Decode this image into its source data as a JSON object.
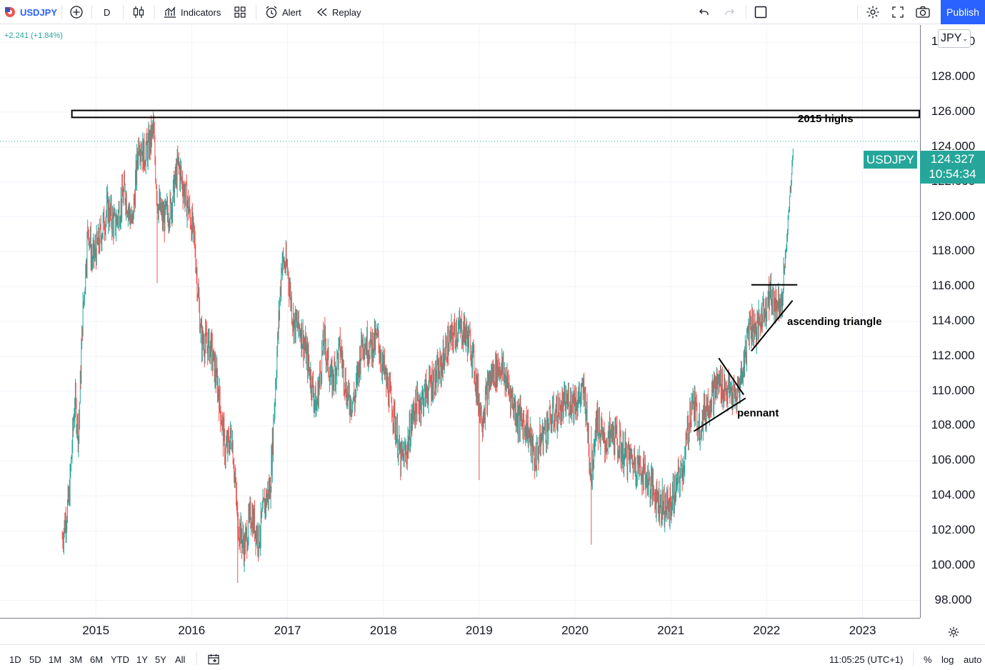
{
  "toolbar": {
    "symbol": "USDJPY",
    "interval": "D",
    "indicators_label": "Indicators",
    "alert_label": "Alert",
    "replay_label": "Replay",
    "publish_label": "Publish"
  },
  "change_text": "+2.241 (+1.84%)",
  "price_axis": {
    "currency": "JPY",
    "last_price": "124.327",
    "countdown": "10:54:34",
    "symbol_tag": "USDJPY"
  },
  "bottom_bar": {
    "ranges": [
      "1D",
      "5D",
      "1M",
      "3M",
      "6M",
      "YTD",
      "1Y",
      "5Y",
      "All"
    ],
    "clock": "11:05:25 (UTC+1)",
    "percent_label": "%",
    "log_label": "log",
    "auto_label": "auto"
  },
  "annotations": {
    "highs_label": "2015 highs",
    "triangle_label": "ascending triangle",
    "pennant_label": "pennant"
  },
  "colors": {
    "up": "#26a69a",
    "down": "#ef5350",
    "accent": "#2962ff"
  },
  "chart_data": {
    "type": "candlestick",
    "symbol": "USDJPY",
    "interval": "D",
    "ylim": [
      97,
      131
    ],
    "xlim": [
      2014.0,
      2023.6
    ],
    "y_ticks": [
      "98.000",
      "100.000",
      "102.000",
      "104.000",
      "106.000",
      "108.000",
      "110.000",
      "112.000",
      "114.000",
      "116.000",
      "118.000",
      "120.000",
      "122.000",
      "124.000",
      "126.000",
      "128.000",
      "130.000"
    ],
    "x_ticks": [
      "2015",
      "2016",
      "2017",
      "2018",
      "2019",
      "2020",
      "2021",
      "2022",
      "2023"
    ],
    "last_price": 124.327,
    "change": 2.241,
    "change_pct": 1.84,
    "price_path": [
      [
        2014.65,
        101.6
      ],
      [
        2014.72,
        103.8
      ],
      [
        2014.78,
        109.5
      ],
      [
        2014.82,
        107.5
      ],
      [
        2014.86,
        114.0
      ],
      [
        2014.92,
        119.5
      ],
      [
        2014.96,
        117.5
      ],
      [
        2015.03,
        118.5
      ],
      [
        2015.12,
        120.5
      ],
      [
        2015.2,
        119.5
      ],
      [
        2015.3,
        121.5
      ],
      [
        2015.38,
        119.5
      ],
      [
        2015.45,
        124.5
      ],
      [
        2015.5,
        123.5
      ],
      [
        2015.55,
        124.0
      ],
      [
        2015.6,
        125.0
      ],
      [
        2015.64,
        121.0
      ],
      [
        2015.7,
        119.8
      ],
      [
        2015.78,
        120.5
      ],
      [
        2015.86,
        123.0
      ],
      [
        2015.92,
        121.5
      ],
      [
        2015.98,
        120.2
      ],
      [
        2016.03,
        118.5
      ],
      [
        2016.1,
        113.0
      ],
      [
        2016.2,
        112.5
      ],
      [
        2016.28,
        110.0
      ],
      [
        2016.35,
        106.5
      ],
      [
        2016.42,
        107.5
      ],
      [
        2016.48,
        102.5
      ],
      [
        2016.55,
        101.0
      ],
      [
        2016.62,
        103.0
      ],
      [
        2016.7,
        101.5
      ],
      [
        2016.76,
        103.5
      ],
      [
        2016.82,
        104.5
      ],
      [
        2016.88,
        111.0
      ],
      [
        2016.94,
        117.5
      ],
      [
        2017.0,
        117.0
      ],
      [
        2017.06,
        114.0
      ],
      [
        2017.14,
        113.5
      ],
      [
        2017.22,
        111.5
      ],
      [
        2017.3,
        109.0
      ],
      [
        2017.38,
        113.0
      ],
      [
        2017.46,
        110.5
      ],
      [
        2017.55,
        112.5
      ],
      [
        2017.63,
        109.5
      ],
      [
        2017.7,
        109.5
      ],
      [
        2017.78,
        113.0
      ],
      [
        2017.86,
        112.5
      ],
      [
        2017.94,
        113.0
      ],
      [
        2018.03,
        110.5
      ],
      [
        2018.1,
        109.0
      ],
      [
        2018.18,
        106.0
      ],
      [
        2018.24,
        106.5
      ],
      [
        2018.32,
        109.0
      ],
      [
        2018.4,
        109.5
      ],
      [
        2018.5,
        110.5
      ],
      [
        2018.58,
        111.0
      ],
      [
        2018.66,
        112.5
      ],
      [
        2018.76,
        113.5
      ],
      [
        2018.84,
        113.5
      ],
      [
        2018.92,
        112.5
      ],
      [
        2018.98,
        110.0
      ],
      [
        2019.03,
        108.5
      ],
      [
        2019.12,
        110.8
      ],
      [
        2019.22,
        111.5
      ],
      [
        2019.32,
        110.0
      ],
      [
        2019.4,
        108.5
      ],
      [
        2019.5,
        108.0
      ],
      [
        2019.58,
        106.0
      ],
      [
        2019.66,
        107.5
      ],
      [
        2019.76,
        108.5
      ],
      [
        2019.86,
        109.0
      ],
      [
        2019.94,
        109.5
      ],
      [
        2020.03,
        109.5
      ],
      [
        2020.1,
        110.0
      ],
      [
        2020.17,
        105.0
      ],
      [
        2020.22,
        108.5
      ],
      [
        2020.3,
        107.0
      ],
      [
        2020.4,
        107.5
      ],
      [
        2020.5,
        106.5
      ],
      [
        2020.6,
        106.0
      ],
      [
        2020.7,
        105.5
      ],
      [
        2020.8,
        104.5
      ],
      [
        2020.9,
        103.5
      ],
      [
        2020.98,
        103.3
      ],
      [
        2021.06,
        104.5
      ],
      [
        2021.14,
        106.0
      ],
      [
        2021.22,
        109.5
      ],
      [
        2021.3,
        108.0
      ],
      [
        2021.4,
        109.5
      ],
      [
        2021.5,
        110.5
      ],
      [
        2021.6,
        110.0
      ],
      [
        2021.68,
        109.5
      ],
      [
        2021.76,
        111.5
      ],
      [
        2021.82,
        114.0
      ],
      [
        2021.9,
        113.5
      ],
      [
        2021.96,
        114.5
      ],
      [
        2022.03,
        115.5
      ],
      [
        2022.1,
        115.0
      ],
      [
        2022.16,
        115.5
      ],
      [
        2022.2,
        118.0
      ],
      [
        2022.24,
        121.0
      ],
      [
        2022.26,
        122.5
      ],
      [
        2022.28,
        124.3
      ]
    ],
    "zones": [
      {
        "label": "2015 highs",
        "y_from": 125.7,
        "y_to": 126.1
      }
    ],
    "trend_lines": [
      {
        "label": "pennant",
        "points": [
          [
            2021.24,
            107.7
          ],
          [
            2021.78,
            109.6
          ]
        ]
      },
      {
        "label": "pennant",
        "points": [
          [
            2021.5,
            111.9
          ],
          [
            2021.76,
            109.8
          ]
        ]
      },
      {
        "label": "ascending triangle",
        "points": [
          [
            2021.84,
            116.1
          ],
          [
            2022.32,
            116.1
          ]
        ]
      },
      {
        "label": "ascending triangle",
        "points": [
          [
            2021.84,
            112.3
          ],
          [
            2022.27,
            115.2
          ]
        ]
      }
    ]
  }
}
